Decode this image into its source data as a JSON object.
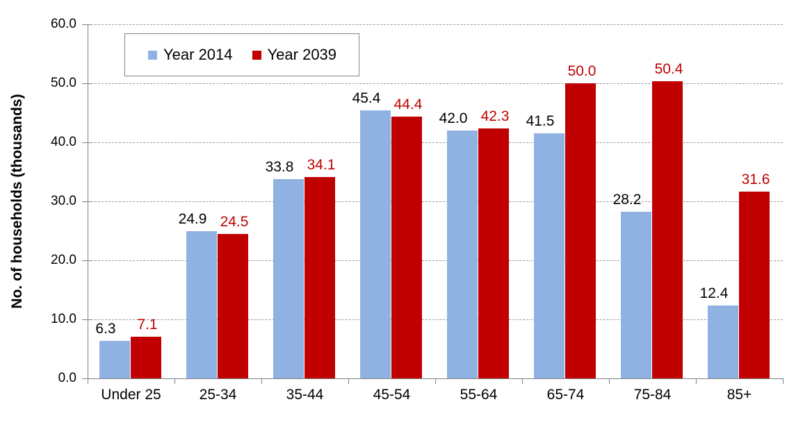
{
  "chart_data": {
    "type": "bar",
    "title": "",
    "ylabel": "No. of households (thousands)",
    "categories": [
      "Under 25",
      "25-34",
      "35-44",
      "45-54",
      "55-64",
      "65-74",
      "75-84",
      "85+"
    ],
    "series": [
      {
        "name": "Year 2014",
        "color": "#8FB2E3",
        "label_color": "#000000",
        "values": [
          6.3,
          24.9,
          33.8,
          45.4,
          42.0,
          41.5,
          28.2,
          12.4
        ]
      },
      {
        "name": "Year 2039",
        "color": "#C00000",
        "label_color": "#C00000",
        "values": [
          7.1,
          24.5,
          34.1,
          44.4,
          42.3,
          50.0,
          50.4,
          31.6
        ]
      }
    ],
    "ylim": [
      0,
      60
    ],
    "ytick_step": 10,
    "ytick_labels": [
      "0.0",
      "10.0",
      "20.0",
      "30.0",
      "40.0",
      "50.0",
      "60.0"
    ],
    "grid": {
      "horizontal": true,
      "style": "dashed",
      "color": "#999999"
    },
    "axis_color": "#808080",
    "legend": {
      "position": "top-left-inside",
      "border_color": "#848484",
      "background": "#FFFFFF"
    },
    "value_format": "one-decimal"
  }
}
